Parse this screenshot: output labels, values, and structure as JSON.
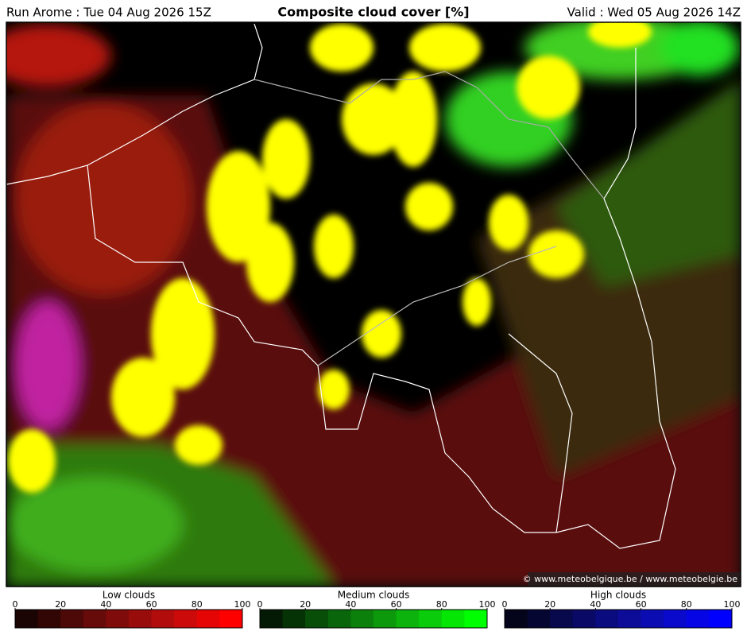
{
  "header": {
    "run": "Run Arome : Tue 04 Aug 2026 15Z",
    "title": "Composite cloud cover [%]",
    "valid": "Valid : Wed 05 Aug 2026 14Z"
  },
  "credit": "© www.meteobelgique.be / www.meteobelgie.be",
  "colorbars": [
    {
      "label": "Low clouds",
      "ticks": [
        0,
        20,
        40,
        60,
        80,
        100
      ],
      "colors": [
        "#1a0404",
        "#330606",
        "#4d0808",
        "#660a0a",
        "#800b0b",
        "#990c0c",
        "#b30c0c",
        "#cc0a0a",
        "#e60505",
        "#ff0000"
      ]
    },
    {
      "label": "Medium clouds",
      "ticks": [
        0,
        20,
        40,
        60,
        80,
        100
      ],
      "colors": [
        "#041a04",
        "#063306",
        "#084d08",
        "#0a660a",
        "#0b800b",
        "#0c990c",
        "#0cb30c",
        "#0acc0a",
        "#05e605",
        "#00ff00"
      ]
    },
    {
      "label": "High clouds",
      "ticks": [
        0,
        20,
        40,
        60,
        80,
        100
      ],
      "colors": [
        "#04041a",
        "#060633",
        "#08084d",
        "#0a0a66",
        "#0b0b80",
        "#0c0c99",
        "#0c0cb3",
        "#0a0acc",
        "#0505e6",
        "#0000ff"
      ]
    }
  ]
}
